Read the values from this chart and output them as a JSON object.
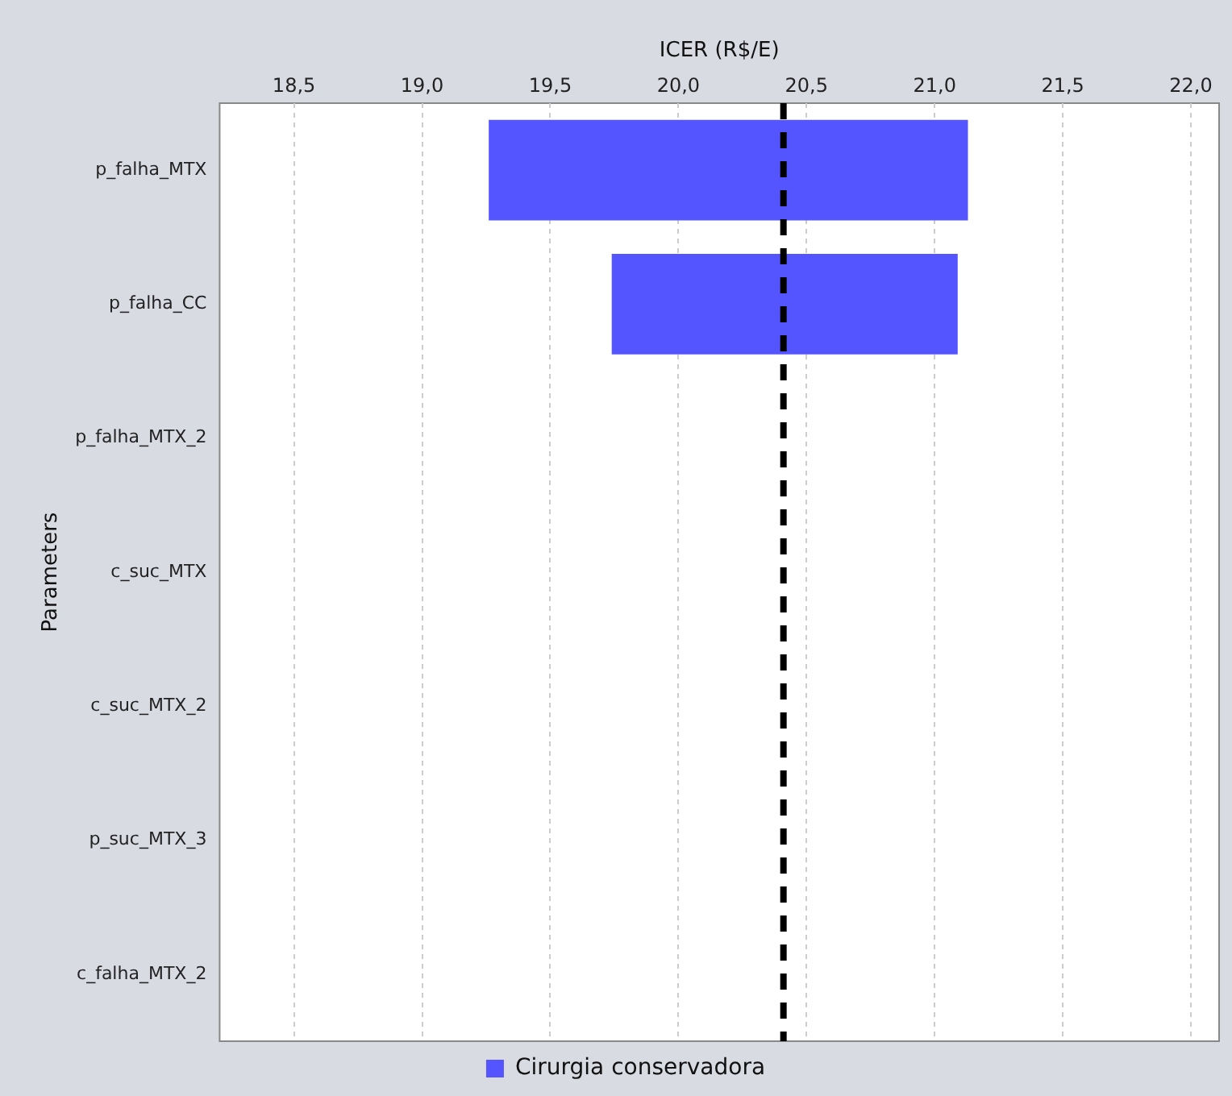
{
  "chart_data": {
    "type": "bar",
    "orientation": "horizontal",
    "xlabel": "ICER (R$/E)",
    "ylabel": "Parameters",
    "categories": [
      "p_falha_MTX",
      "p_falha_CC",
      "p_falha_MTX_2",
      "c_suc_MTX",
      "c_suc_MTX_2",
      "p_suc_MTX_3",
      "c_falha_MTX_2"
    ],
    "series": [
      {
        "name": "Cirurgia conservadora",
        "color": "#5555ff",
        "values": [
          1.87,
          1.35,
          null,
          null,
          null,
          null,
          null
        ],
        "base": [
          19.26,
          19.74,
          null,
          null,
          null,
          null,
          null
        ]
      }
    ],
    "xlim": [
      18.21,
      22.11
    ],
    "xticks": [
      {
        "value": 18.5,
        "label": "18,5"
      },
      {
        "value": 19.0,
        "label": "19,0"
      },
      {
        "value": 19.5,
        "label": "19,5"
      },
      {
        "value": 20.0,
        "label": "20,0"
      },
      {
        "value": 20.5,
        "label": "20,5"
      },
      {
        "value": 21.0,
        "label": "21,0"
      },
      {
        "value": 21.5,
        "label": "21,5"
      },
      {
        "value": 22.0,
        "label": "22,0"
      }
    ],
    "ref_lines": [
      {
        "axis": "x",
        "value": 20.41,
        "color": "#000000",
        "line_style": "dashed"
      }
    ],
    "grid": "x",
    "legend": "bottom"
  }
}
